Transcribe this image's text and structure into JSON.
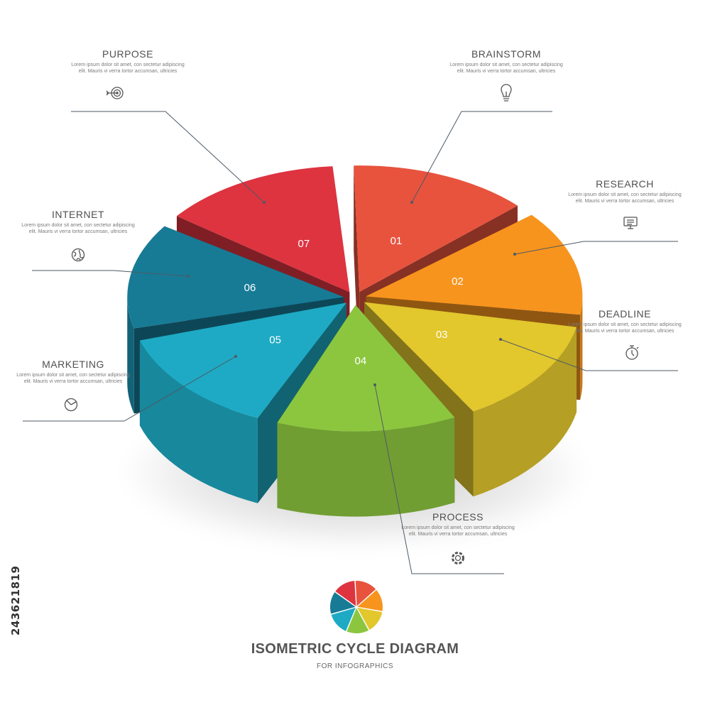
{
  "title": "ISOMETRIC CYCLE DIAGRAM",
  "subtitle": "FOR INFOGRAPHICS",
  "stock_id": "243621819",
  "segments": [
    {
      "number": "01",
      "label": "BRAINSTORM",
      "icon": "lightbulb-icon",
      "color": "#e8533e"
    },
    {
      "number": "02",
      "label": "RESEARCH",
      "icon": "monitor-icon",
      "color": "#f7941d"
    },
    {
      "number": "03",
      "label": "DEADLINE",
      "icon": "stopwatch-icon",
      "color": "#e2c72d"
    },
    {
      "number": "04",
      "label": "PROCESS",
      "icon": "gear-icon",
      "color": "#8cc63f"
    },
    {
      "number": "05",
      "label": "MARKETING",
      "icon": "pie-chart-icon",
      "color": "#1eaac4"
    },
    {
      "number": "06",
      "label": "INTERNET",
      "icon": "globe-icon",
      "color": "#177b96"
    },
    {
      "number": "07",
      "label": "PURPOSE",
      "icon": "target-icon",
      "color": "#dd3440"
    }
  ],
  "description": "Lorem ipsum dolor sit amet, con sectetur adipiscing elit. Mauris vi verra tortor accumsan, ultricies"
}
